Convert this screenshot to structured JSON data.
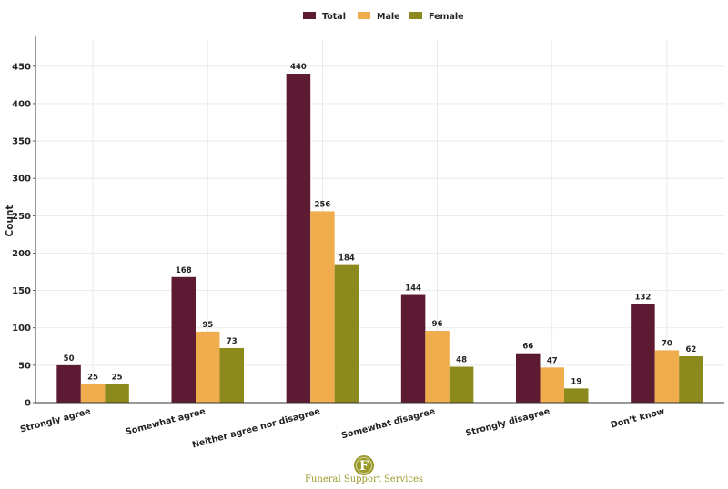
{
  "chart_data": {
    "type": "bar",
    "categories": [
      "Strongly agree",
      "Somewhat agree",
      "Neither agree nor disagree",
      "Somewhat disagree",
      "Strongly disagree",
      "Don’t know"
    ],
    "series": [
      {
        "name": "Total",
        "color": "#5c1a33",
        "values": [
          50,
          168,
          440,
          144,
          66,
          132
        ]
      },
      {
        "name": "Male",
        "color": "#f0ad4e",
        "values": [
          25,
          95,
          256,
          96,
          47,
          70
        ]
      },
      {
        "name": "Female",
        "color": "#8c8a1c",
        "values": [
          25,
          73,
          184,
          48,
          19,
          62
        ]
      }
    ],
    "ylabel": "Count",
    "xlabel": "",
    "ylim": [
      0,
      485
    ],
    "yticks": [
      0,
      50,
      100,
      150,
      200,
      250,
      300,
      350,
      400,
      450
    ],
    "grid": true,
    "legend": "top-center"
  },
  "logo": {
    "letter": "F",
    "text": "Funeral Support Services",
    "color": "#9a9a2a"
  }
}
